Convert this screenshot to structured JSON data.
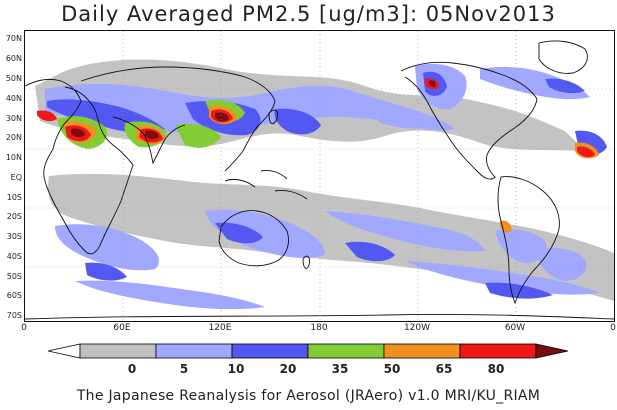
{
  "title": "Daily Averaged PM2.5 [ug/m3]: 05Nov2013",
  "footer": "The Japanese Reanalysis for Aerosol (JRAero) v1.0 MRI/KU_RIAM",
  "y_axis_labels": [
    "70N",
    "60N",
    "50N",
    "40N",
    "30N",
    "20N",
    "10N",
    "EQ",
    "10S",
    "20S",
    "30S",
    "40S",
    "50S",
    "60S",
    "70S"
  ],
  "x_axis_labels": [
    "0",
    "60E",
    "120E",
    "180",
    "120W",
    "60W",
    "0"
  ],
  "legend": {
    "labels": [
      "0",
      "5",
      "10",
      "20",
      "35",
      "50",
      "65",
      "80"
    ],
    "colors": [
      "#ffffff",
      "#c0c0c0",
      "#a0a8ff",
      "#5358f2",
      "#84cc35",
      "#f09020",
      "#ef1717",
      "#7a0d0d"
    ]
  }
}
